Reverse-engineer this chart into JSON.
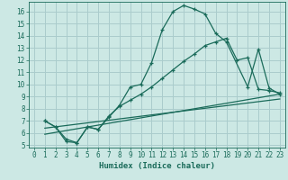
{
  "xlabel": "Humidex (Indice chaleur)",
  "bg_color": "#cce8e4",
  "grid_color": "#aacccc",
  "line_color": "#1a6b5a",
  "xlim": [
    -0.5,
    23.5
  ],
  "ylim": [
    4.8,
    16.8
  ],
  "xticks": [
    0,
    1,
    2,
    3,
    4,
    5,
    6,
    7,
    8,
    9,
    10,
    11,
    12,
    13,
    14,
    15,
    16,
    17,
    18,
    19,
    20,
    21,
    22,
    23
  ],
  "yticks": [
    5,
    6,
    7,
    8,
    9,
    10,
    11,
    12,
    13,
    14,
    15,
    16
  ],
  "line1_x": [
    1,
    2,
    3,
    4,
    5,
    6,
    7,
    8,
    9,
    10,
    11,
    12,
    13,
    14,
    15,
    16,
    17,
    18,
    20,
    21,
    22,
    23
  ],
  "line1_y": [
    7.0,
    6.5,
    5.3,
    5.2,
    6.5,
    6.3,
    7.3,
    8.3,
    9.8,
    10.0,
    11.8,
    14.5,
    16.0,
    16.5,
    16.2,
    15.8,
    14.2,
    13.5,
    9.8,
    12.9,
    9.7,
    9.2
  ],
  "line2_x": [
    1,
    2,
    3,
    4,
    5,
    6,
    7,
    8,
    9,
    10,
    11,
    12,
    13,
    14,
    15,
    16,
    17,
    18,
    19,
    20,
    21,
    22,
    23
  ],
  "line2_y": [
    7.0,
    6.5,
    5.5,
    5.2,
    6.5,
    6.3,
    7.4,
    8.2,
    8.7,
    9.2,
    9.8,
    10.5,
    11.2,
    11.9,
    12.5,
    13.2,
    13.5,
    13.8,
    12.0,
    12.2,
    9.6,
    9.5,
    9.3
  ],
  "line3_x": [
    1,
    23
  ],
  "line3_y": [
    5.9,
    9.2
  ],
  "line4_x": [
    1,
    23
  ],
  "line4_y": [
    6.4,
    8.8
  ]
}
